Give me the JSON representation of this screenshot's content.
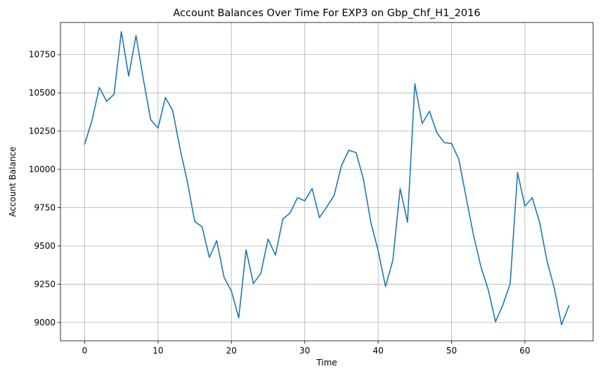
{
  "chart_data": {
    "type": "line",
    "title": "Account Balances Over Time For EXP3 on Gbp_Chf_H1_2016",
    "xlabel": "Time",
    "ylabel": "Account Balance",
    "xlim": [
      -3.3,
      69.3
    ],
    "ylim": [
      8880,
      10960
    ],
    "xticks": [
      0,
      10,
      20,
      30,
      40,
      50,
      60
    ],
    "yticks": [
      9000,
      9250,
      9500,
      9750,
      10000,
      10250,
      10500,
      10750
    ],
    "grid": true,
    "colors": {
      "line": "#1f77b4",
      "grid": "#b0b0b0",
      "axis": "#000000"
    },
    "series": [
      {
        "x": [
          0,
          1,
          2,
          3,
          4,
          5,
          6,
          7,
          8,
          9,
          10,
          11,
          12,
          13,
          14,
          15,
          16,
          17,
          18,
          19,
          20,
          21,
          22,
          23,
          24,
          25,
          26,
          27,
          28,
          29,
          30,
          31,
          32,
          33,
          34,
          35,
          36,
          37,
          38,
          39,
          40,
          41,
          42,
          43,
          44,
          45,
          46,
          47,
          48,
          49,
          50,
          51,
          52,
          53,
          54,
          55,
          56,
          57,
          58,
          59,
          60,
          61,
          62,
          63,
          64,
          65,
          66
        ],
        "values": [
          10165,
          10320,
          10535,
          10445,
          10490,
          10900,
          10610,
          10875,
          10590,
          10325,
          10270,
          10470,
          10385,
          10135,
          9920,
          9660,
          9625,
          9425,
          9535,
          9295,
          9205,
          9030,
          9475,
          9255,
          9320,
          9545,
          9440,
          9675,
          9715,
          9815,
          9795,
          9875,
          9685,
          9755,
          9830,
          10025,
          10125,
          10110,
          9935,
          9655,
          9470,
          9235,
          9405,
          9875,
          9655,
          10560,
          10300,
          10380,
          10240,
          10175,
          10170,
          10065,
          9815,
          9570,
          9365,
          9215,
          9005,
          9115,
          9255,
          9980,
          9760,
          9815,
          9655,
          9405,
          9225,
          8985,
          9110
        ]
      }
    ]
  }
}
